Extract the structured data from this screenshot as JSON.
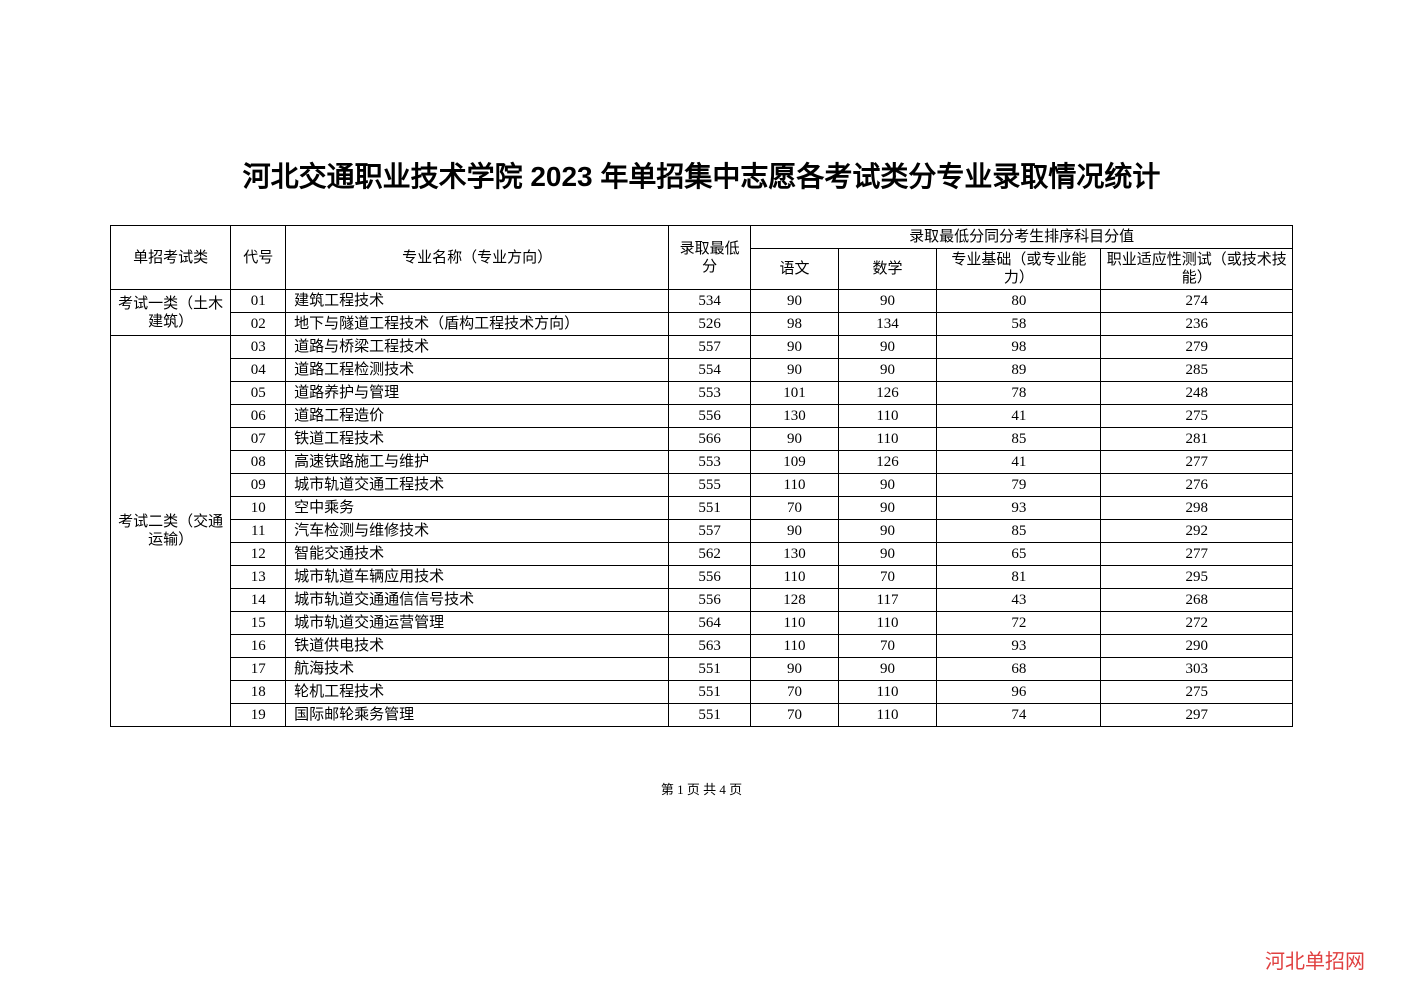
{
  "title": "河北交通职业技术学院 2023 年单招集中志愿各考试类分专业录取情况统计",
  "headers": {
    "category": "单招考试类",
    "code": "代号",
    "major": "专业名称（专业方向）",
    "minscore": "录取最低分",
    "ranking_header": "录取最低分同分考生排序科目分值",
    "chinese": "语文",
    "math": "数学",
    "basic": "专业基础（或专业能力）",
    "vocational": "职业适应性测试（或技术技能）"
  },
  "groups": [
    {
      "category": "考试一类（土木建筑）",
      "rows": [
        {
          "code": "01",
          "major": "建筑工程技术",
          "min": "534",
          "chinese": "90",
          "math": "90",
          "basic": "80",
          "voc": "274"
        },
        {
          "code": "02",
          "major": "地下与隧道工程技术（盾构工程技术方向）",
          "min": "526",
          "chinese": "98",
          "math": "134",
          "basic": "58",
          "voc": "236"
        }
      ]
    },
    {
      "category": "考试二类（交通运输）",
      "rows": [
        {
          "code": "03",
          "major": "道路与桥梁工程技术",
          "min": "557",
          "chinese": "90",
          "math": "90",
          "basic": "98",
          "voc": "279"
        },
        {
          "code": "04",
          "major": "道路工程检测技术",
          "min": "554",
          "chinese": "90",
          "math": "90",
          "basic": "89",
          "voc": "285"
        },
        {
          "code": "05",
          "major": "道路养护与管理",
          "min": "553",
          "chinese": "101",
          "math": "126",
          "basic": "78",
          "voc": "248"
        },
        {
          "code": "06",
          "major": "道路工程造价",
          "min": "556",
          "chinese": "130",
          "math": "110",
          "basic": "41",
          "voc": "275"
        },
        {
          "code": "07",
          "major": "铁道工程技术",
          "min": "566",
          "chinese": "90",
          "math": "110",
          "basic": "85",
          "voc": "281"
        },
        {
          "code": "08",
          "major": "高速铁路施工与维护",
          "min": "553",
          "chinese": "109",
          "math": "126",
          "basic": "41",
          "voc": "277"
        },
        {
          "code": "09",
          "major": "城市轨道交通工程技术",
          "min": "555",
          "chinese": "110",
          "math": "90",
          "basic": "79",
          "voc": "276"
        },
        {
          "code": "10",
          "major": "空中乘务",
          "min": "551",
          "chinese": "70",
          "math": "90",
          "basic": "93",
          "voc": "298"
        },
        {
          "code": "11",
          "major": "汽车检测与维修技术",
          "min": "557",
          "chinese": "90",
          "math": "90",
          "basic": "85",
          "voc": "292"
        },
        {
          "code": "12",
          "major": "智能交通技术",
          "min": "562",
          "chinese": "130",
          "math": "90",
          "basic": "65",
          "voc": "277"
        },
        {
          "code": "13",
          "major": "城市轨道车辆应用技术",
          "min": "556",
          "chinese": "110",
          "math": "70",
          "basic": "81",
          "voc": "295"
        },
        {
          "code": "14",
          "major": "城市轨道交通通信信号技术",
          "min": "556",
          "chinese": "128",
          "math": "117",
          "basic": "43",
          "voc": "268"
        },
        {
          "code": "15",
          "major": "城市轨道交通运营管理",
          "min": "564",
          "chinese": "110",
          "math": "110",
          "basic": "72",
          "voc": "272"
        },
        {
          "code": "16",
          "major": "铁道供电技术",
          "min": "563",
          "chinese": "110",
          "math": "70",
          "basic": "93",
          "voc": "290"
        },
        {
          "code": "17",
          "major": "航海技术",
          "min": "551",
          "chinese": "90",
          "math": "90",
          "basic": "68",
          "voc": "303"
        },
        {
          "code": "18",
          "major": "轮机工程技术",
          "min": "551",
          "chinese": "70",
          "math": "110",
          "basic": "96",
          "voc": "275"
        },
        {
          "code": "19",
          "major": "国际邮轮乘务管理",
          "min": "551",
          "chinese": "70",
          "math": "110",
          "basic": "74",
          "voc": "297"
        }
      ]
    }
  ],
  "page_number": "第 1 页 共 4 页",
  "watermark": "河北单招网"
}
